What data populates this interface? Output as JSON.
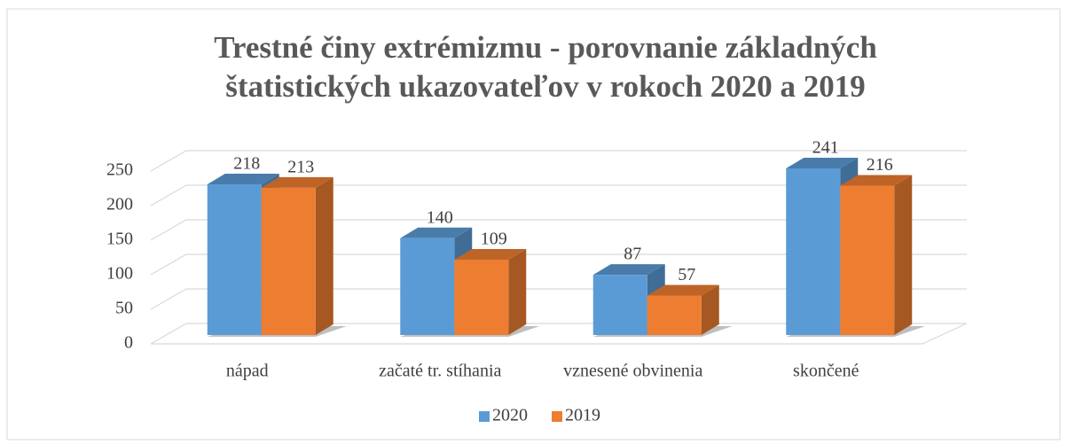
{
  "chart_data": {
    "type": "bar3d",
    "title": [
      "Trestné činy extrémizmu - porovnanie základných",
      "štatistických ukazovateľov v rokoch 2020 a 2019"
    ],
    "categories": [
      "nápad",
      "začaté tr. stíhania",
      "vznesené obvinenia",
      "skončené"
    ],
    "series": [
      {
        "name": "2020",
        "color": "#5b9bd5",
        "values": [
          218,
          140,
          87,
          241
        ]
      },
      {
        "name": "2019",
        "color": "#ed7d31",
        "values": [
          213,
          109,
          57,
          216
        ]
      }
    ],
    "ylim": [
      0,
      250
    ],
    "yticks": [
      0,
      50,
      100,
      150,
      200,
      250
    ],
    "grid": true,
    "legend": "bottom"
  }
}
